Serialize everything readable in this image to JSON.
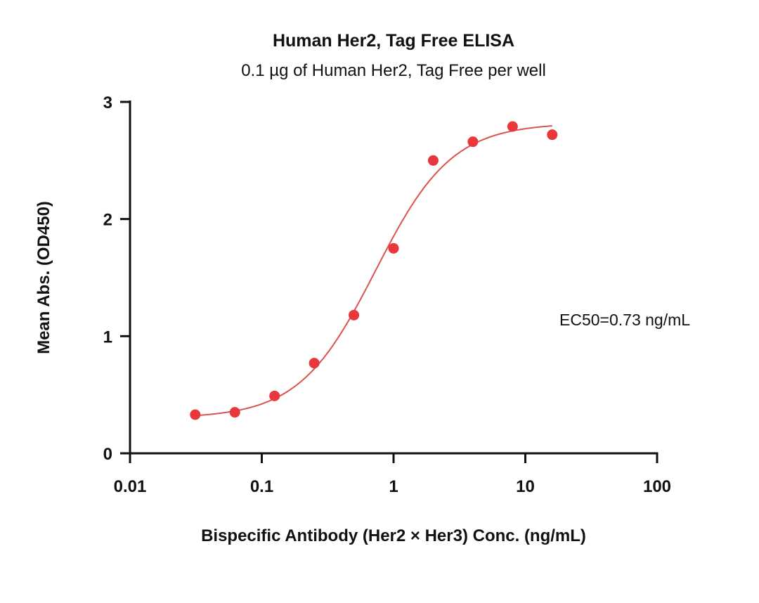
{
  "chart_data": {
    "type": "scatter",
    "title": "Human Her2, Tag Free ELISA",
    "subtitle": "0.1 µg of Human Her2, Tag Free per well",
    "xlabel": "Bispecific Antibody (Her2 × Her3) Conc. (ng/mL)",
    "ylabel": "Mean Abs. (OD450)",
    "xscale": "log",
    "xlim": [
      0.01,
      100
    ],
    "ylim": [
      0,
      3
    ],
    "xticks": [
      0.01,
      0.1,
      1,
      10,
      100
    ],
    "xtick_labels": [
      "0.01",
      "0.1",
      "1",
      "10",
      "100"
    ],
    "yticks": [
      0,
      1,
      2,
      3
    ],
    "ytick_labels": [
      "0",
      "1",
      "2",
      "3"
    ],
    "grid": false,
    "series": [
      {
        "name": "Human Her2, Tag Free",
        "color": "#e8383d",
        "x": [
          0.03125,
          0.0625,
          0.125,
          0.25,
          0.5,
          1,
          2,
          4,
          8,
          16
        ],
        "y": [
          0.33,
          0.35,
          0.49,
          0.77,
          1.18,
          1.75,
          2.5,
          2.66,
          2.79,
          2.72
        ]
      }
    ],
    "fit": {
      "model": "4PL",
      "bottom": 0.3,
      "top": 2.82,
      "ec50": 0.73,
      "hill": 1.5,
      "x_range": [
        0.03125,
        16
      ],
      "color": "#d9534f"
    },
    "annotation": "EC50=0.73 ng/mL"
  }
}
